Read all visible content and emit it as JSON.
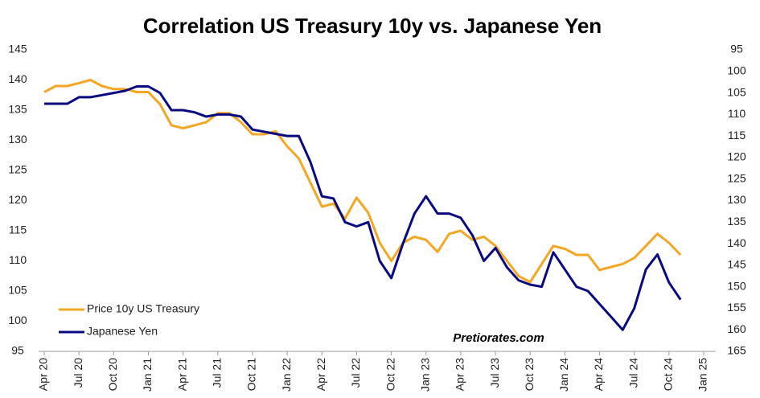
{
  "chart_data": {
    "type": "line",
    "title": "Correlation US Treasury 10y vs. Japanese Yen",
    "annotation": "Pretiorates.com",
    "x": [
      "Apr 20",
      "May 20",
      "Jun 20",
      "Jul 20",
      "Aug 20",
      "Sep 20",
      "Oct 20",
      "Nov 20",
      "Dec 20",
      "Jan 21",
      "Feb 21",
      "Mar 21",
      "Apr 21",
      "May 21",
      "Jun 21",
      "Jul 21",
      "Aug 21",
      "Sep 21",
      "Oct 21",
      "Nov 21",
      "Dec 21",
      "Jan 22",
      "Feb 22",
      "Mar 22",
      "Apr 22",
      "May 22",
      "Jun 22",
      "Jul 22",
      "Aug 22",
      "Sep 22",
      "Oct 22",
      "Nov 22",
      "Dec 22",
      "Jan 23",
      "Feb 23",
      "Mar 23",
      "Apr 23",
      "May 23",
      "Jun 23",
      "Jul 23",
      "Aug 23",
      "Sep 23",
      "Oct 23",
      "Nov 23",
      "Dec 23",
      "Jan 24",
      "Feb 24",
      "Mar 24",
      "Apr 24",
      "May 24",
      "Jun 24",
      "Jul 24",
      "Aug 24",
      "Sep 24",
      "Oct 24",
      "Nov 24"
    ],
    "series": [
      {
        "name": "Price 10y US Treasury",
        "color": "#f5a623",
        "axis": "y",
        "values": [
          138,
          139,
          139,
          139.5,
          140,
          139,
          138.5,
          138.5,
          138,
          138,
          136,
          132.5,
          132,
          132.5,
          133,
          134.5,
          134.5,
          133,
          131,
          131,
          131.5,
          129,
          127,
          123,
          119,
          119.5,
          117,
          120.5,
          118,
          113,
          110,
          113,
          114,
          113.5,
          111.5,
          114.5,
          115,
          113.5,
          114,
          112.5,
          110,
          107.5,
          106.5,
          109.5,
          112.5,
          112,
          111,
          111,
          108.5,
          109,
          109.5,
          110.5,
          112.5,
          114.5,
          113,
          111
        ]
      },
      {
        "name": "Japanese Yen",
        "color": "#0a0a80",
        "axis": "y2",
        "values": [
          107.5,
          107.5,
          107.5,
          106,
          106,
          105.5,
          105,
          104.5,
          103.5,
          103.5,
          105,
          109,
          109,
          109.5,
          110.5,
          110,
          110,
          110.5,
          113.5,
          114,
          114.5,
          115,
          115,
          121,
          129,
          129.5,
          135,
          136,
          135,
          144,
          148,
          140,
          133,
          129,
          133,
          133,
          134,
          138,
          144,
          141,
          145.5,
          148.5,
          149.5,
          150,
          142,
          146,
          150,
          151,
          154,
          157,
          160,
          155,
          146,
          142.5,
          149,
          153
        ]
      }
    ],
    "xticks": [
      "Apr 20",
      "Jul 20",
      "Oct 20",
      "Jan 21",
      "Apr 21",
      "Jul 21",
      "Oct 21",
      "Jan 22",
      "Apr 22",
      "Jul 22",
      "Oct 22",
      "Jan 23",
      "Apr 23",
      "Jul 23",
      "Oct 23",
      "Jan 24",
      "Apr 24",
      "Jul 24",
      "Oct 24",
      "Jan 25"
    ],
    "ylim": [
      95,
      145
    ],
    "yticks": [
      95,
      100,
      105,
      110,
      115,
      120,
      125,
      130,
      135,
      140,
      145
    ],
    "y2lim": [
      95,
      165
    ],
    "y2_inverted": true,
    "y2ticks": [
      95,
      100,
      105,
      110,
      115,
      120,
      125,
      130,
      135,
      140,
      145,
      150,
      155,
      160,
      165
    ],
    "legend": "lower left"
  }
}
